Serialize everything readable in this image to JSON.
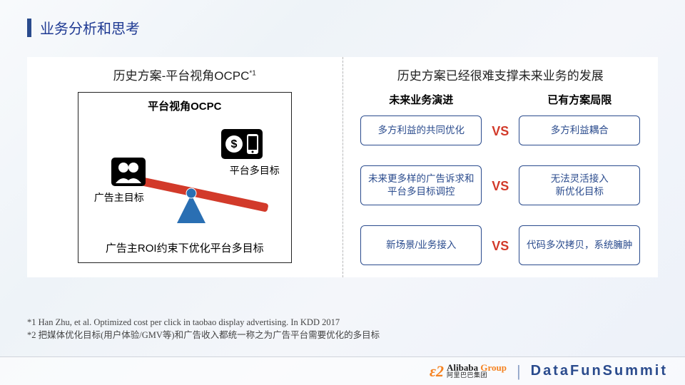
{
  "page_title": "业务分析和思考",
  "accent_color": "#2a4b8d",
  "left": {
    "title_prefix": "历史方案-平台视角OCPC",
    "title_sup": "*1",
    "box_title": "平台视角OCPC",
    "left_label": "广告主目标",
    "right_label": "平台多目标",
    "caption": "广告主ROI约束下优化平台多目标",
    "seesaw": {
      "bar_color": "#d23a2a",
      "fulcrum_color": "#2a6fb3",
      "icon_bg": "#000000",
      "icon_fg": "#ffffff"
    }
  },
  "right": {
    "title": "历史方案已经很难支撑未来业务的发展",
    "col_left_head": "未来业务演进",
    "col_right_head": "已有方案局限",
    "vs_label": "VS",
    "rows": [
      {
        "left": "多方利益的共同优化",
        "right": "多方利益耦合"
      },
      {
        "left": "未来更多样的广告诉求和平台多目标调控",
        "right": "无法灵活接入\n新优化目标"
      },
      {
        "left": "新场景/业务接入",
        "right": "代码多次拷贝，系统臃肿"
      }
    ],
    "pill_border": "#2a4b8d",
    "vs_color": "#d23a2a"
  },
  "footnotes": [
    "*1 Han Zhu, et al. Optimized cost per click in taobao display advertising. In KDD 2017",
    "*2 把媒体优化目标(用户体验/GMV等)和广告收入都统一称之为广告平台需要优化的多目标"
  ],
  "footer": {
    "logo_name": "Alibaba",
    "logo_group": " Group",
    "logo_sub": "阿里巴巴集团",
    "summit": "DataFunSummit"
  }
}
